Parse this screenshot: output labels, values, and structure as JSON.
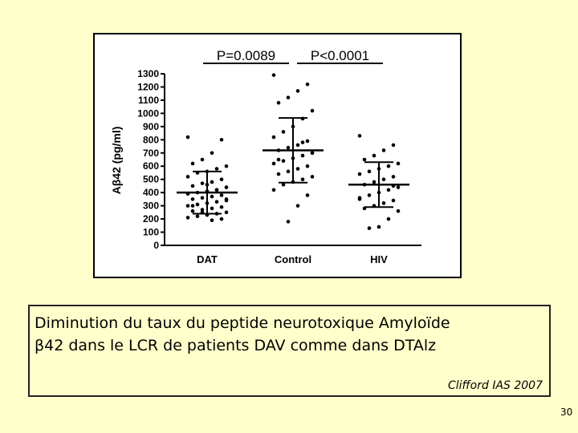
{
  "chart_data": {
    "type": "dotplot",
    "ylabel": "Aβ42 (pg/ml)",
    "ylim": [
      0,
      1300
    ],
    "yticks": [
      0,
      100,
      200,
      300,
      400,
      500,
      600,
      700,
      800,
      900,
      1000,
      1100,
      1200,
      1300
    ],
    "categories": [
      "DAT",
      "Control",
      "HIV"
    ],
    "color": "#000000",
    "groups": [
      {
        "values": [
          820,
          800,
          700,
          650,
          620,
          600,
          580,
          560,
          550,
          520,
          500,
          480,
          470,
          450,
          440,
          420,
          410,
          400,
          390,
          380,
          370,
          360,
          350,
          340,
          330,
          320,
          310,
          300,
          290,
          280,
          270,
          260,
          250,
          240,
          230,
          220,
          210,
          200,
          190,
          250,
          300,
          350,
          420,
          460
        ],
        "mean": 400,
        "sd": 160
      },
      {
        "values": [
          1290,
          1220,
          1170,
          1120,
          1080,
          1020,
          960,
          900,
          860,
          820,
          790,
          760,
          740,
          720,
          700,
          680,
          660,
          640,
          620,
          600,
          580,
          560,
          540,
          520,
          500,
          480,
          460,
          420,
          380,
          300,
          180,
          650,
          700,
          780
        ],
        "mean": 720,
        "sd": 245
      },
      {
        "values": [
          830,
          760,
          720,
          680,
          650,
          620,
          600,
          580,
          560,
          540,
          520,
          500,
          480,
          460,
          440,
          420,
          400,
          380,
          360,
          340,
          320,
          300,
          280,
          260,
          200,
          140,
          130,
          350,
          450
        ],
        "mean": 460,
        "sd": 170
      }
    ],
    "annotations": [
      {
        "text": "P=0.0089",
        "from": 0,
        "to": 1
      },
      {
        "text": "P<0.0001",
        "from": 1,
        "to": 2
      }
    ]
  },
  "caption": {
    "lines": [
      "Diminution du taux du peptide neurotoxique Amyloïde",
      "β42 dans le LCR de patients DAV comme dans DTAlz"
    ],
    "citation": "Clifford IAS 2007"
  },
  "page_number": "30"
}
